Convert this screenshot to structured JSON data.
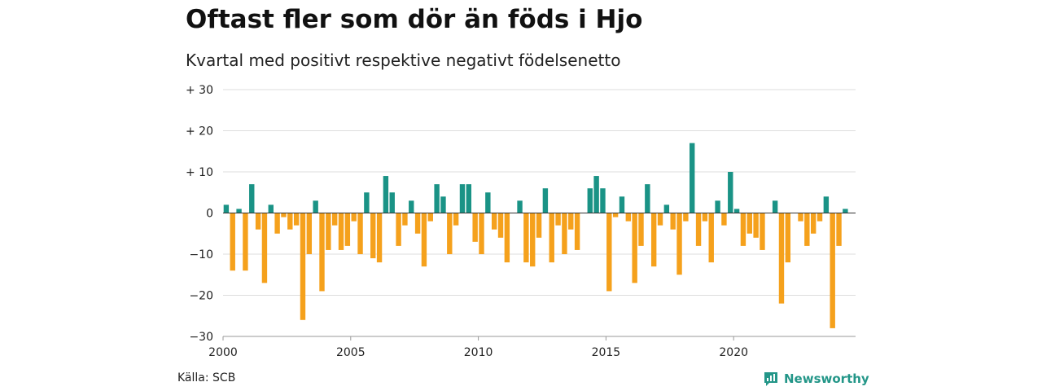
{
  "title": "Oftast fler som dör än föds i Hjo",
  "subtitle": "Kvartal med positivt respektive negativt födelsenetto",
  "source": "Källa: SCB",
  "brand": {
    "name": "Newsworthy",
    "icon": "chart-logo-icon"
  },
  "colors": {
    "positive": "#1a9386",
    "negative": "#f5a11c",
    "grid": "#dddddd",
    "zero": "#333333"
  },
  "chart_data": {
    "type": "bar",
    "title": "Oftast fler som dör än föds i Hjo",
    "subtitle": "Kvartal med positivt respektive negativt födelsenetto",
    "ylim": [
      -30,
      30
    ],
    "y_ticks": [
      {
        "value": 30,
        "label": "+ 30"
      },
      {
        "value": 20,
        "label": "+ 20"
      },
      {
        "value": 10,
        "label": "+ 10"
      },
      {
        "value": 0,
        "label": "0"
      },
      {
        "value": -10,
        "label": "−10"
      },
      {
        "value": -20,
        "label": "−20"
      },
      {
        "value": -30,
        "label": "−30"
      }
    ],
    "x_ticks": [
      "2000",
      "2005",
      "2010",
      "2015",
      "2020"
    ],
    "start_year": 2000,
    "quarters_per_year": 4,
    "grid": true,
    "values": [
      2,
      -14,
      1,
      -14,
      7,
      -4,
      -17,
      2,
      -5,
      -1,
      -4,
      -3,
      -26,
      -10,
      3,
      -19,
      -9,
      -3,
      -9,
      -8,
      -2,
      -10,
      5,
      -11,
      -12,
      9,
      5,
      -8,
      -3,
      3,
      -5,
      -13,
      -2,
      7,
      4,
      -10,
      -3,
      7,
      7,
      -7,
      -10,
      5,
      -4,
      -6,
      -12,
      0,
      3,
      -12,
      -13,
      -6,
      6,
      -12,
      -3,
      -10,
      -4,
      -9,
      0,
      6,
      9,
      6,
      -19,
      -1,
      4,
      -2,
      -17,
      -8,
      7,
      -13,
      -3,
      2,
      -4,
      -15,
      -2,
      17,
      -8,
      -2,
      -12,
      3,
      -3,
      10,
      1,
      -8,
      -5,
      -6,
      -9,
      0,
      3,
      -22,
      -12,
      0,
      -2,
      -8,
      -5,
      -2,
      4,
      -28,
      -8,
      1
    ]
  }
}
